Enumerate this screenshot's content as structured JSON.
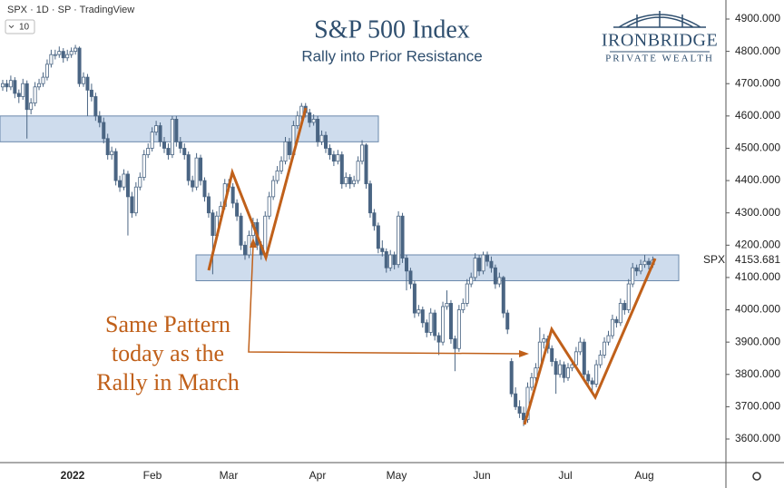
{
  "chart_data": {
    "type": "candlestick",
    "title": "S&P 500 Index",
    "subtitle": "Rally into Prior Resistance",
    "header": "SPX · 1D · SP · TradingView",
    "interval_box": "10",
    "logo": {
      "name": "IronBridge",
      "tagline": "Private Wealth"
    },
    "annotation": [
      "Same Pattern",
      "today as the",
      "Rally in March"
    ],
    "symbol": "SPX",
    "up_color": "#ffffff",
    "down_color": "#4a6583",
    "outline_color": "#4a6583",
    "pattern_color": "#c0601a",
    "zones": [
      [
        4520,
        4600
      ],
      [
        4090,
        4170
      ]
    ],
    "ylim": [
      3600,
      4900
    ],
    "yticks": [
      {
        "value": 3600,
        "label": "3600.000"
      },
      {
        "value": 3700,
        "label": "3700.000"
      },
      {
        "value": 3800,
        "label": "3800.000"
      },
      {
        "value": 3900,
        "label": "3900.000"
      },
      {
        "value": 4000,
        "label": "4000.000"
      },
      {
        "value": 4100,
        "label": "4100.000"
      },
      {
        "value": 4200,
        "label": "4200.000"
      },
      {
        "value": 4300,
        "label": "4300.000"
      },
      {
        "value": 4400,
        "label": "4400.000"
      },
      {
        "value": 4500,
        "label": "4500.000"
      },
      {
        "value": 4600,
        "label": "4600.000"
      },
      {
        "value": 4700,
        "label": "4700.000"
      },
      {
        "value": 4800,
        "label": "4800.000"
      },
      {
        "value": 4900,
        "label": "4900.000"
      }
    ],
    "xtick_labels": [
      "2022",
      "Feb",
      "Mar",
      "Apr",
      "May",
      "Jun",
      "Jul",
      "Aug"
    ],
    "candles": [
      [
        4690,
        4712,
        4678,
        4700
      ],
      [
        4700,
        4712,
        4675,
        4690
      ],
      [
        4690,
        4725,
        4680,
        4710
      ],
      [
        4710,
        4720,
        4655,
        4670
      ],
      [
        4670,
        4682,
        4640,
        4660
      ],
      [
        4660,
        4715,
        4650,
        4700
      ],
      [
        4700,
        4710,
        4530,
        4620
      ],
      [
        4620,
        4655,
        4605,
        4640
      ],
      [
        4640,
        4705,
        4630,
        4690
      ],
      [
        4690,
        4715,
        4680,
        4700
      ],
      [
        4700,
        4735,
        4690,
        4720
      ],
      [
        4720,
        4775,
        4710,
        4760
      ],
      [
        4760,
        4805,
        4750,
        4790
      ],
      [
        4790,
        4805,
        4775,
        4790
      ],
      [
        4790,
        4815,
        4780,
        4800
      ],
      [
        4800,
        4810,
        4765,
        4780
      ],
      [
        4780,
        4805,
        4770,
        4790
      ],
      [
        4790,
        4812,
        4780,
        4800
      ],
      [
        4800,
        4820,
        4790,
        4810
      ],
      [
        4810,
        4815,
        4690,
        4700
      ],
      [
        4700,
        4735,
        4690,
        4720
      ],
      [
        4720,
        4730,
        4600,
        4680
      ],
      [
        4680,
        4700,
        4645,
        4660
      ],
      [
        4660,
        4672,
        4585,
        4600
      ],
      [
        4600,
        4615,
        4565,
        4580
      ],
      [
        4580,
        4595,
        4515,
        4530
      ],
      [
        4530,
        4545,
        4465,
        4480
      ],
      [
        4480,
        4505,
        4465,
        4490
      ],
      [
        4490,
        4500,
        4385,
        4400
      ],
      [
        4400,
        4415,
        4365,
        4380
      ],
      [
        4380,
        4435,
        4370,
        4420
      ],
      [
        4420,
        4430,
        4230,
        4350
      ],
      [
        4350,
        4365,
        4285,
        4300
      ],
      [
        4300,
        4395,
        4290,
        4380
      ],
      [
        4380,
        4425,
        4370,
        4410
      ],
      [
        4410,
        4495,
        4400,
        4480
      ],
      [
        4480,
        4515,
        4470,
        4500
      ],
      [
        4500,
        4565,
        4490,
        4550
      ],
      [
        4550,
        4585,
        4540,
        4570
      ],
      [
        4570,
        4580,
        4505,
        4520
      ],
      [
        4520,
        4535,
        4485,
        4500
      ],
      [
        4500,
        4515,
        4465,
        4480
      ],
      [
        4480,
        4600,
        4470,
        4590
      ],
      [
        4590,
        4600,
        4505,
        4520
      ],
      [
        4520,
        4535,
        4485,
        4500
      ],
      [
        4500,
        4515,
        4465,
        4480
      ],
      [
        4480,
        4490,
        4385,
        4400
      ],
      [
        4400,
        4415,
        4365,
        4380
      ],
      [
        4380,
        4485,
        4370,
        4470
      ],
      [
        4470,
        4480,
        4385,
        4400
      ],
      [
        4400,
        4410,
        4335,
        4350
      ],
      [
        4350,
        4362,
        4285,
        4300
      ],
      [
        4300,
        4310,
        4110,
        4230
      ],
      [
        4230,
        4305,
        4220,
        4290
      ],
      [
        4290,
        4335,
        4280,
        4320
      ],
      [
        4320,
        4405,
        4310,
        4390
      ],
      [
        4390,
        4405,
        4365,
        4380
      ],
      [
        4380,
        4392,
        4315,
        4330
      ],
      [
        4330,
        4342,
        4275,
        4290
      ],
      [
        4290,
        4300,
        4185,
        4200
      ],
      [
        4200,
        4212,
        4155,
        4170
      ],
      [
        4170,
        4245,
        4160,
        4230
      ],
      [
        4230,
        4285,
        4220,
        4270
      ],
      [
        4270,
        4282,
        4185,
        4200
      ],
      [
        4200,
        4212,
        4155,
        4170
      ],
      [
        4170,
        4305,
        4160,
        4290
      ],
      [
        4290,
        4365,
        4280,
        4350
      ],
      [
        4350,
        4415,
        4340,
        4400
      ],
      [
        4400,
        4445,
        4390,
        4430
      ],
      [
        4430,
        4475,
        4420,
        4460
      ],
      [
        4460,
        4535,
        4450,
        4520
      ],
      [
        4520,
        4532,
        4465,
        4480
      ],
      [
        4480,
        4585,
        4470,
        4570
      ],
      [
        4570,
        4615,
        4560,
        4600
      ],
      [
        4600,
        4640,
        4590,
        4630
      ],
      [
        4630,
        4640,
        4595,
        4610
      ],
      [
        4610,
        4622,
        4565,
        4580
      ],
      [
        4580,
        4605,
        4570,
        4590
      ],
      [
        4590,
        4600,
        4505,
        4520
      ],
      [
        4520,
        4555,
        4510,
        4540
      ],
      [
        4540,
        4552,
        4485,
        4500
      ],
      [
        4500,
        4512,
        4465,
        4480
      ],
      [
        4480,
        4492,
        4445,
        4460
      ],
      [
        4460,
        4495,
        4450,
        4480
      ],
      [
        4480,
        4490,
        4375,
        4390
      ],
      [
        4390,
        4425,
        4380,
        4410
      ],
      [
        4410,
        4420,
        4375,
        4390
      ],
      [
        4390,
        4415,
        4380,
        4400
      ],
      [
        4400,
        4475,
        4390,
        4460
      ],
      [
        4460,
        4525,
        4450,
        4510
      ],
      [
        4510,
        4515,
        4375,
        4390
      ],
      [
        4390,
        4400,
        4285,
        4300
      ],
      [
        4300,
        4312,
        4245,
        4260
      ],
      [
        4260,
        4270,
        4175,
        4190
      ],
      [
        4190,
        4215,
        4165,
        4180
      ],
      [
        4180,
        4190,
        4115,
        4130
      ],
      [
        4130,
        4185,
        4120,
        4170
      ],
      [
        4170,
        4180,
        4125,
        4140
      ],
      [
        4140,
        4305,
        4130,
        4290
      ],
      [
        4290,
        4300,
        4145,
        4160
      ],
      [
        4160,
        4170,
        4060,
        4120
      ],
      [
        4120,
        4130,
        4065,
        4080
      ],
      [
        4080,
        4090,
        3975,
        3990
      ],
      [
        3990,
        4015,
        3980,
        4000
      ],
      [
        4000,
        4010,
        3945,
        3960
      ],
      [
        3960,
        3970,
        3915,
        3930
      ],
      [
        3930,
        4005,
        3920,
        3990
      ],
      [
        3990,
        4000,
        3905,
        3920
      ],
      [
        3920,
        3930,
        3860,
        3900
      ],
      [
        3900,
        4025,
        3890,
        4010
      ],
      [
        4010,
        4060,
        4000,
        4020
      ],
      [
        4020,
        4030,
        3895,
        3910
      ],
      [
        3910,
        3920,
        3810,
        3880
      ],
      [
        3880,
        4015,
        3870,
        4000
      ],
      [
        4000,
        4035,
        3990,
        4020
      ],
      [
        4020,
        4095,
        4010,
        4080
      ],
      [
        4080,
        4115,
        4070,
        4100
      ],
      [
        4100,
        4175,
        4090,
        4160
      ],
      [
        4160,
        4170,
        4105,
        4120
      ],
      [
        4120,
        4180,
        4110,
        4170
      ],
      [
        4170,
        4180,
        4135,
        4150
      ],
      [
        4150,
        4165,
        4115,
        4130
      ],
      [
        4130,
        4140,
        4065,
        4080
      ],
      [
        4080,
        4115,
        4070,
        4100
      ],
      [
        4100,
        4105,
        3975,
        3990
      ],
      [
        3990,
        4000,
        3925,
        3940
      ],
      [
        3840,
        3850,
        3730,
        3740
      ],
      [
        3740,
        3760,
        3690,
        3700
      ],
      [
        3700,
        3720,
        3665,
        3680
      ],
      [
        3680,
        3700,
        3640,
        3660
      ],
      [
        3660,
        3775,
        3650,
        3760
      ],
      [
        3760,
        3805,
        3750,
        3790
      ],
      [
        3790,
        3835,
        3780,
        3820
      ],
      [
        3820,
        3945,
        3810,
        3900
      ],
      [
        3900,
        3925,
        3880,
        3910
      ],
      [
        3910,
        3920,
        3865,
        3880
      ],
      [
        3880,
        3890,
        3825,
        3840
      ],
      [
        3840,
        3850,
        3740,
        3800
      ],
      [
        3800,
        3845,
        3790,
        3830
      ],
      [
        3830,
        3840,
        3775,
        3790
      ],
      [
        3790,
        3835,
        3780,
        3820
      ],
      [
        3820,
        3845,
        3810,
        3830
      ],
      [
        3830,
        3885,
        3820,
        3870
      ],
      [
        3870,
        3915,
        3860,
        3900
      ],
      [
        3900,
        3910,
        3785,
        3800
      ],
      [
        3800,
        3812,
        3765,
        3780
      ],
      [
        3780,
        3790,
        3745,
        3770
      ],
      [
        3770,
        3845,
        3760,
        3830
      ],
      [
        3830,
        3875,
        3820,
        3860
      ],
      [
        3860,
        3915,
        3850,
        3900
      ],
      [
        3900,
        3935,
        3890,
        3920
      ],
      [
        3920,
        3985,
        3910,
        3970
      ],
      [
        3970,
        3980,
        3945,
        3960
      ],
      [
        3960,
        4035,
        3950,
        4020
      ],
      [
        4020,
        4030,
        3985,
        4000
      ],
      [
        4000,
        4095,
        3990,
        4080
      ],
      [
        4080,
        4145,
        4070,
        4130
      ],
      [
        4130,
        4140,
        4105,
        4120
      ],
      [
        4120,
        4155,
        4110,
        4140
      ],
      [
        4140,
        4170,
        4130,
        4150
      ],
      [
        4150,
        4160,
        4125,
        4140
      ],
      [
        4140,
        4165,
        4130,
        4153.681
      ]
    ]
  }
}
